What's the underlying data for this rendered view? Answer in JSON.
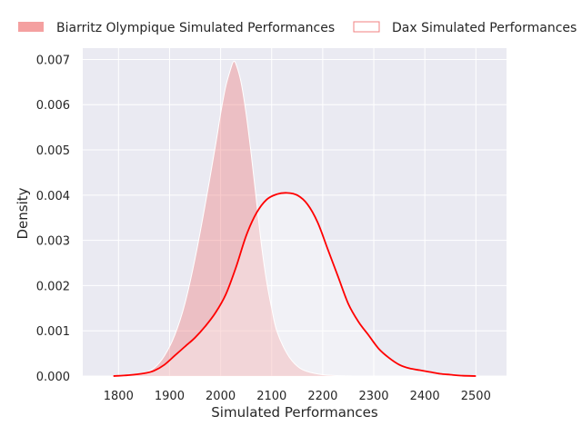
{
  "chart_data": {
    "type": "area",
    "title": "",
    "xlabel": "Simulated Performances",
    "ylabel": "Density",
    "xlim": [
      1730,
      2560
    ],
    "ylim": [
      0,
      0.00725
    ],
    "xticks": [
      1800,
      1900,
      2000,
      2100,
      2200,
      2300,
      2400,
      2500
    ],
    "xtick_labels": [
      "1800",
      "1900",
      "2000",
      "2100",
      "2200",
      "2300",
      "2400",
      "2500"
    ],
    "yticks": [
      0,
      0.001,
      0.002,
      0.003,
      0.004,
      0.005,
      0.006,
      0.007
    ],
    "ytick_labels": [
      "0.000",
      "0.001",
      "0.002",
      "0.003",
      "0.004",
      "0.005",
      "0.006",
      "0.007"
    ],
    "grid": true,
    "legend_position": "top",
    "series": [
      {
        "name": "Biarritz Olympique Simulated Performances",
        "style": "filled",
        "color": "#f08080",
        "x": [
          1790,
          1820,
          1850,
          1870,
          1890,
          1910,
          1930,
          1950,
          1970,
          1990,
          2000,
          2010,
          2020,
          2025,
          2030,
          2040,
          2050,
          2060,
          2070,
          2080,
          2090,
          2100,
          2110,
          2130,
          2150,
          2170,
          2200,
          2230,
          2260
        ],
        "y": [
          0.0,
          2e-05,
          7e-05,
          0.00018,
          0.00045,
          0.0009,
          0.0016,
          0.0026,
          0.0038,
          0.0051,
          0.0058,
          0.0064,
          0.0068,
          0.00695,
          0.0069,
          0.0065,
          0.0058,
          0.0049,
          0.0039,
          0.0029,
          0.0021,
          0.0015,
          0.001,
          0.0005,
          0.00022,
          0.0001,
          3e-05,
          1e-05,
          0.0
        ]
      },
      {
        "name": "Dax Simulated Performances",
        "style": "line",
        "color": "#ff0000",
        "x": [
          1790,
          1820,
          1850,
          1870,
          1890,
          1910,
          1930,
          1950,
          1970,
          1990,
          2010,
          2030,
          2050,
          2070,
          2090,
          2110,
          2130,
          2150,
          2170,
          2190,
          2210,
          2230,
          2250,
          2270,
          2290,
          2310,
          2330,
          2350,
          2370,
          2390,
          2410,
          2430,
          2450,
          2470,
          2500
        ],
        "y": [
          0.0,
          2e-05,
          6e-05,
          0.00012,
          0.00025,
          0.00045,
          0.00065,
          0.00085,
          0.0011,
          0.0014,
          0.0018,
          0.0024,
          0.0031,
          0.0036,
          0.0039,
          0.00402,
          0.00405,
          0.004,
          0.0038,
          0.0034,
          0.0028,
          0.0022,
          0.0016,
          0.0012,
          0.0009,
          0.0006,
          0.0004,
          0.00025,
          0.00017,
          0.00013,
          9e-05,
          5e-05,
          3e-05,
          1e-05,
          0.0
        ]
      }
    ]
  },
  "colors": {
    "plot_background": "#eaeaf2",
    "grid": "#ffffff",
    "biarritz_fill": "#f08080",
    "dax_line": "#ff0000"
  }
}
